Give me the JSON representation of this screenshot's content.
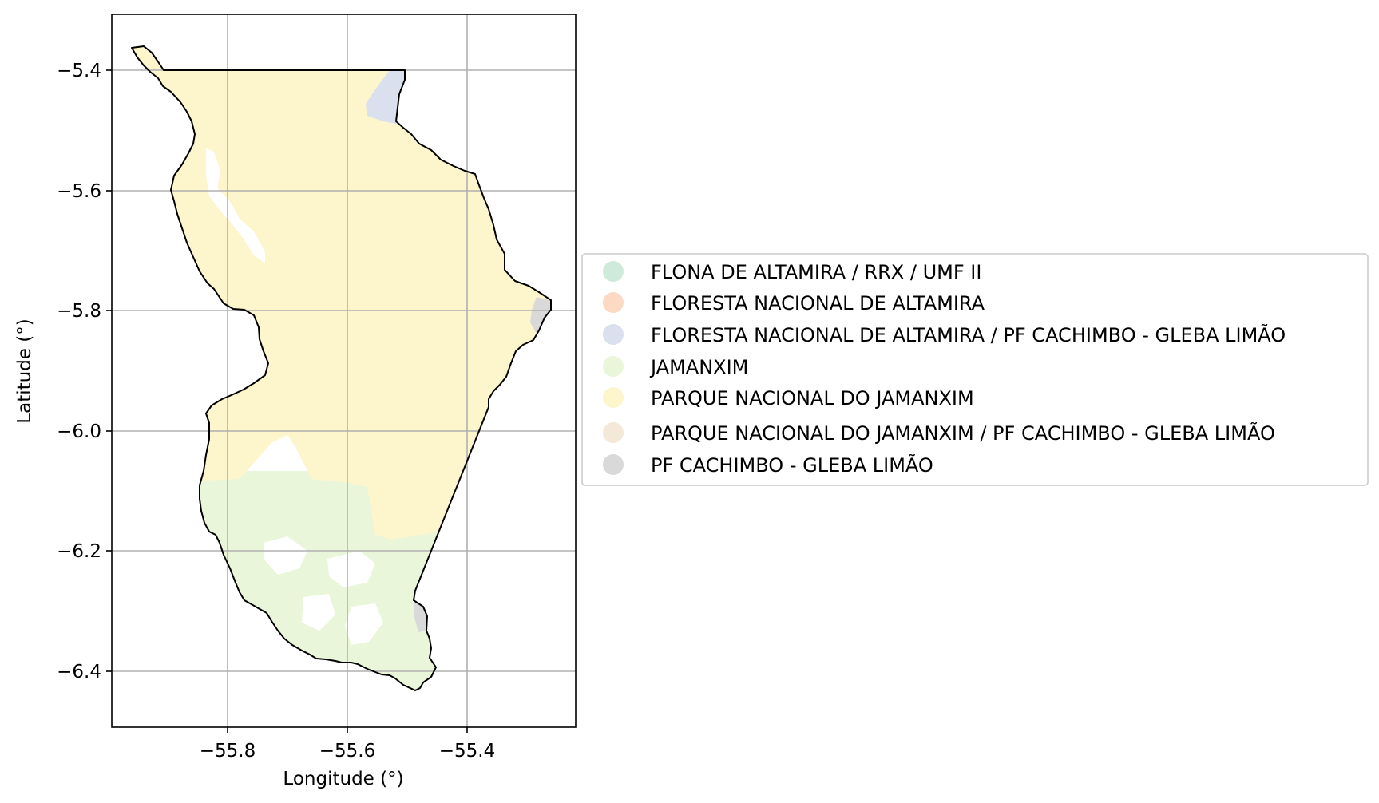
{
  "map": {
    "xlabel": "Longitude (°)",
    "ylabel": "Latitude (°)",
    "xlim": [
      -55.99,
      -55.22
    ],
    "ylim": [
      -6.49,
      -5.31
    ],
    "x_ticks": [
      -55.8,
      -55.6,
      -55.4
    ],
    "x_tick_labels": [
      "−55.8",
      "−55.6",
      "−55.4"
    ],
    "y_ticks": [
      -5.4,
      -5.6,
      -5.8,
      -6.0,
      -6.2,
      -6.4
    ],
    "y_tick_labels": [
      "−5.4",
      "−5.6",
      "−5.8",
      "−6.0",
      "−6.2",
      "−6.4"
    ],
    "grid": true,
    "outline_color": "#000000",
    "grid_color": "#b0b0b0"
  },
  "legend": {
    "placement": "center-left, outside plot (right side)",
    "items": [
      {
        "label": "FLONA DE ALTAMIRA / RRX / UMF II",
        "color": "#cfeadb"
      },
      {
        "label": "FLORESTA NACIONAL DE ALTAMIRA",
        "color": "#fcd9c2"
      },
      {
        "label": "FLORESTA NACIONAL DE ALTAMIRA / PF CACHIMBO - GLEBA LIMÃO",
        "color": "#dbe0ef"
      },
      {
        "label": "JAMANXIM",
        "color": "#eaf6da"
      },
      {
        "label": "PARQUE NACIONAL DO JAMANXIM",
        "color": "#fdf5cc"
      },
      {
        "label": "PARQUE NACIONAL DO JAMANXIM / PF CACHIMBO - GLEBA LIMÃO",
        "color": "#f4e8d8"
      },
      {
        "label": "PF CACHIMBO - GLEBA LIMÃO",
        "color": "#d9d9d9"
      }
    ]
  }
}
